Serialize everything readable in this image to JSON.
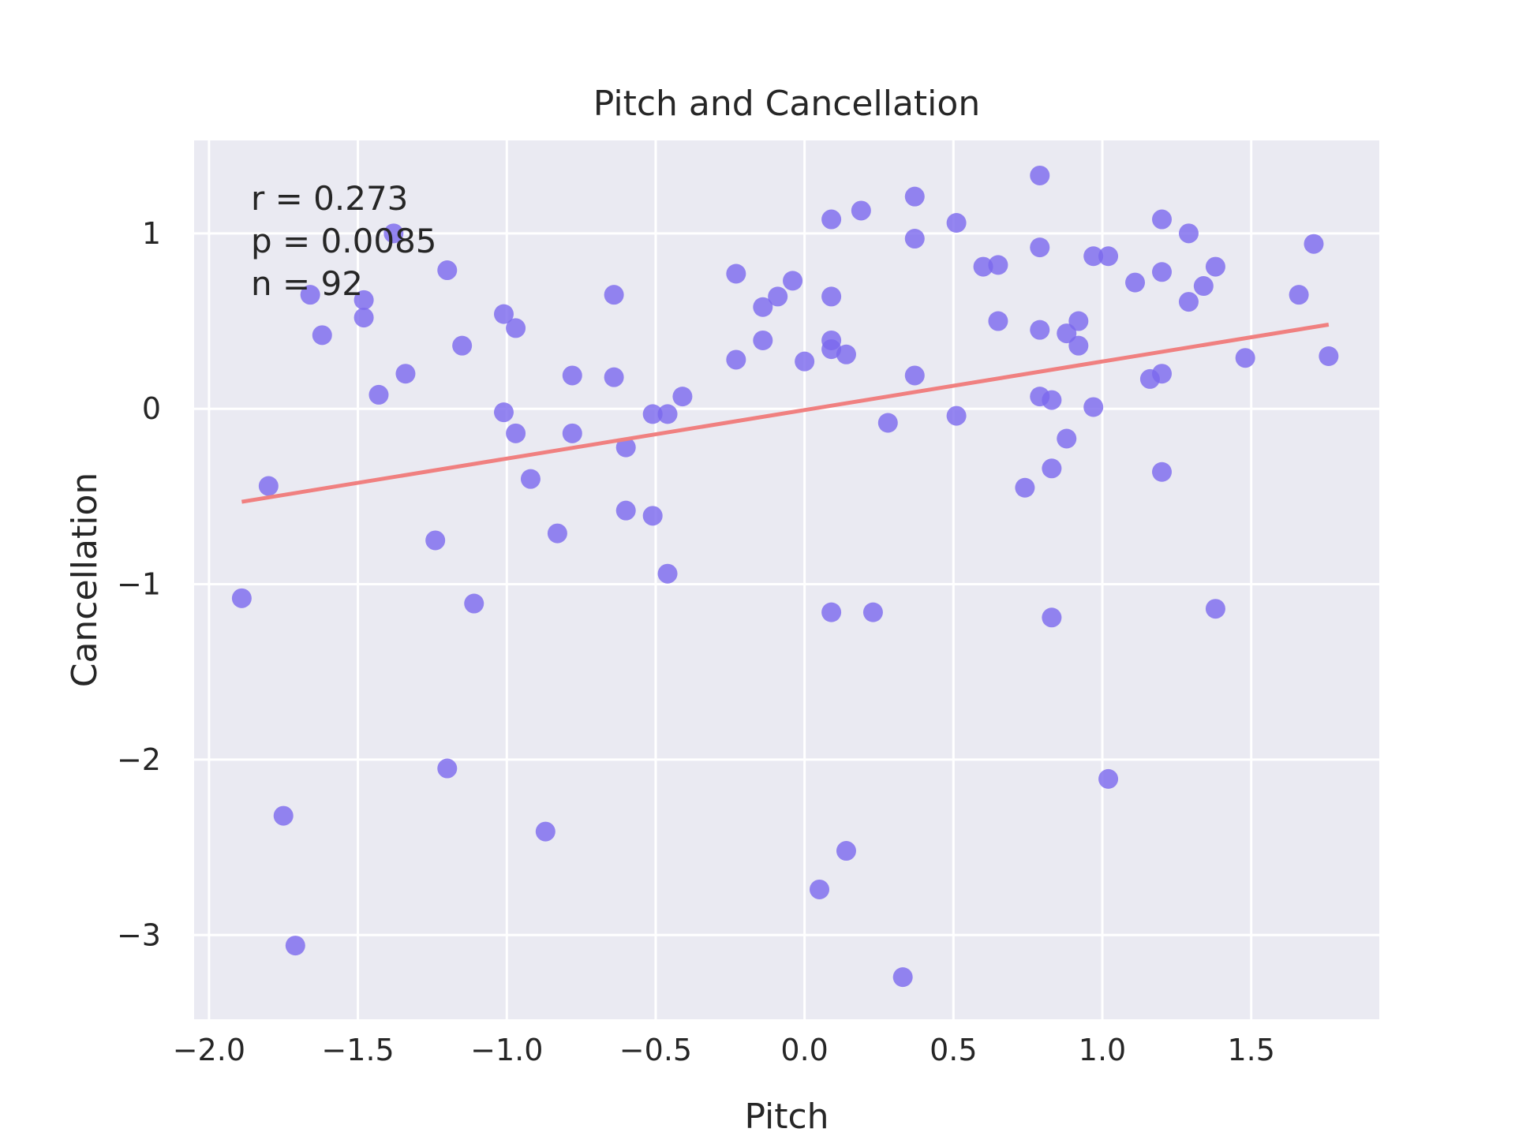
{
  "chart_data": {
    "type": "scatter",
    "title": "Pitch and Cancellation",
    "xlabel": "Pitch",
    "ylabel": "Cancellation",
    "xlim": [
      -2.05,
      1.93
    ],
    "ylim": [
      -3.48,
      1.53
    ],
    "xticks": [
      -2.0,
      -1.5,
      -1.0,
      -0.5,
      0.0,
      0.5,
      1.0,
      1.5
    ],
    "xtick_labels": [
      "−2.0",
      "−1.5",
      "−1.0",
      "−0.5",
      "0.0",
      "0.5",
      "1.0",
      "1.5"
    ],
    "yticks": [
      -3,
      -2,
      -1,
      0,
      1
    ],
    "ytick_labels": [
      "−3",
      "−2",
      "−1",
      "0",
      "1"
    ],
    "grid": true,
    "annotations": [
      "r = 0.273",
      "p = 0.0085",
      "n = 92"
    ],
    "colors": {
      "background": "#eaeaf2",
      "grid": "#ffffff",
      "points": "#7b68ee",
      "fit_line": "#f08080"
    },
    "fit_line": {
      "x": [
        -1.89,
        1.76
      ],
      "y": [
        -0.53,
        0.48
      ]
    },
    "points": {
      "x": [
        -1.89,
        -1.8,
        -1.75,
        -1.71,
        -1.66,
        -1.62,
        -1.48,
        -1.48,
        -1.43,
        -1.38,
        -1.34,
        -1.24,
        -1.2,
        -1.2,
        -1.15,
        -1.11,
        -1.01,
        -1.01,
        -0.97,
        -0.97,
        -0.92,
        -0.87,
        -0.83,
        -0.78,
        -0.78,
        -0.64,
        -0.64,
        -0.6,
        -0.6,
        -0.51,
        -0.51,
        -0.46,
        -0.46,
        -0.41,
        -0.23,
        -0.23,
        -0.14,
        -0.14,
        -0.09,
        -0.04,
        0.0,
        0.05,
        0.09,
        0.09,
        0.09,
        0.09,
        0.09,
        0.14,
        0.14,
        0.19,
        0.23,
        0.28,
        0.33,
        0.37,
        0.37,
        0.37,
        0.51,
        0.51,
        0.6,
        0.65,
        0.65,
        0.74,
        0.79,
        0.79,
        0.79,
        0.79,
        0.83,
        0.83,
        0.83,
        0.88,
        0.88,
        0.92,
        0.92,
        0.97,
        0.97,
        1.02,
        1.02,
        1.11,
        1.16,
        1.2,
        1.2,
        1.2,
        1.2,
        1.29,
        1.29,
        1.34,
        1.38,
        1.38,
        1.48,
        1.66,
        1.71,
        1.76
      ],
      "y": [
        -1.08,
        -0.44,
        -2.32,
        -3.06,
        0.65,
        0.42,
        0.62,
        0.52,
        0.08,
        1.0,
        0.2,
        -0.75,
        0.79,
        -2.05,
        0.36,
        -1.11,
        0.54,
        -0.02,
        0.46,
        -0.14,
        -0.4,
        -2.41,
        -0.71,
        0.19,
        -0.14,
        0.65,
        0.18,
        -0.22,
        -0.58,
        -0.03,
        -0.61,
        -0.03,
        -0.94,
        0.07,
        0.77,
        0.28,
        0.58,
        0.39,
        0.64,
        0.73,
        0.27,
        -2.74,
        1.08,
        0.64,
        0.39,
        0.34,
        -1.16,
        0.31,
        -2.52,
        1.13,
        -1.16,
        -0.08,
        -3.24,
        1.21,
        0.97,
        0.19,
        1.06,
        -0.04,
        0.81,
        0.82,
        0.5,
        -0.45,
        1.33,
        0.92,
        0.45,
        0.07,
        0.05,
        -0.34,
        -1.19,
        0.43,
        -0.17,
        0.5,
        0.36,
        0.87,
        0.01,
        0.87,
        -2.11,
        0.72,
        0.17,
        1.08,
        0.78,
        0.2,
        -0.36,
        1.0,
        0.61,
        0.7,
        0.81,
        -1.14,
        0.29,
        0.65,
        0.94,
        0.3
      ]
    }
  }
}
